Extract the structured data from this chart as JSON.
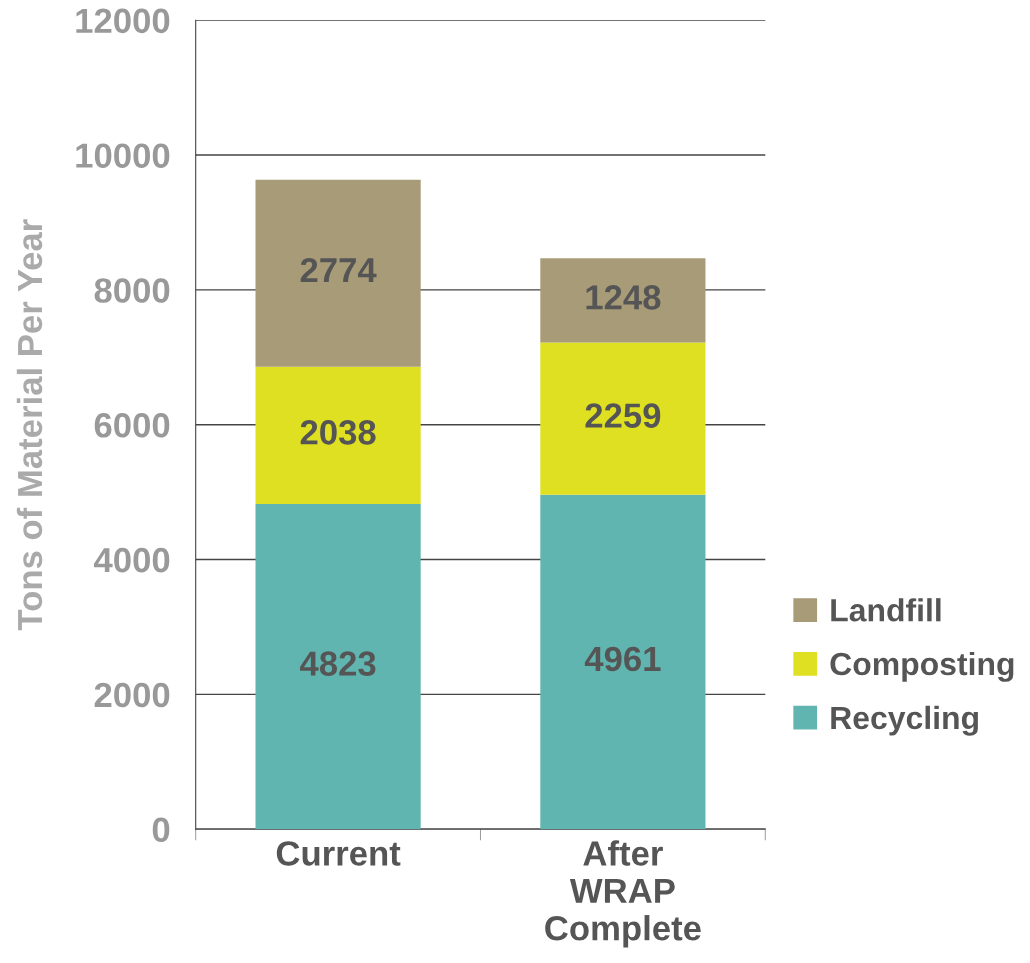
{
  "chart_data": {
    "type": "bar",
    "stacked": true,
    "ylabel": "Tons of Material Per Year",
    "categories": [
      "Current",
      "After\nWRAP\nComplete"
    ],
    "series": [
      {
        "name": "Recycling",
        "color": "#61b5b0",
        "values": [
          4823,
          4961
        ]
      },
      {
        "name": "Composting",
        "color": "#dfe022",
        "values": [
          2038,
          2259
        ]
      },
      {
        "name": "Landfill",
        "color": "#a89b78",
        "values": [
          2774,
          1248
        ]
      }
    ],
    "ylim": [
      0,
      12000
    ],
    "yticks": [
      0,
      2000,
      4000,
      6000,
      8000,
      10000,
      12000
    ],
    "grid": "y",
    "legend": "bottom right",
    "data_labels": true
  }
}
